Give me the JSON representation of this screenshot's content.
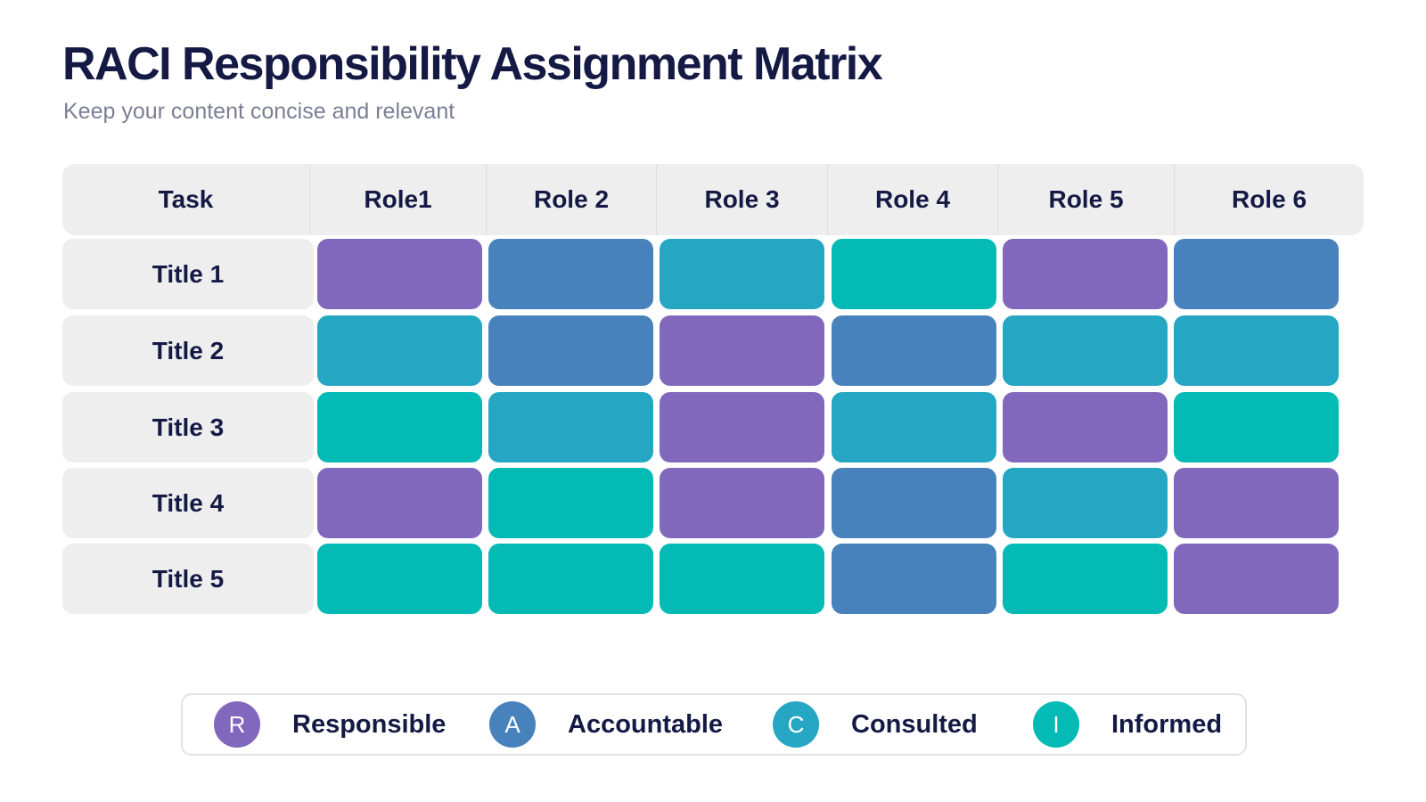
{
  "title": "RACI Responsibility Assignment Matrix",
  "subtitle": "Keep your content concise and relevant",
  "colors": {
    "R": "#8268bd",
    "A": "#4882bc",
    "C": "#25a7c4",
    "I": "#04bab5",
    "header_bg": "#eeeeee",
    "text": "#151a45"
  },
  "matrix": {
    "task_header": "Task",
    "roles": [
      "Role1",
      "Role 2",
      "Role 3",
      "Role 4",
      "Role 5",
      "Role 6"
    ],
    "rows": [
      {
        "title": "Title 1",
        "cells": [
          "R",
          "A",
          "C",
          "I",
          "R",
          "A"
        ]
      },
      {
        "title": "Title 2",
        "cells": [
          "C",
          "A",
          "R",
          "A",
          "C",
          "C"
        ]
      },
      {
        "title": "Title 3",
        "cells": [
          "I",
          "C",
          "R",
          "C",
          "R",
          "I"
        ]
      },
      {
        "title": "Title 4",
        "cells": [
          "R",
          "I",
          "R",
          "A",
          "C",
          "R"
        ]
      },
      {
        "title": "Title 5",
        "cells": [
          "I",
          "I",
          "I",
          "A",
          "I",
          "R"
        ]
      }
    ]
  },
  "legend": [
    {
      "key": "R",
      "letter": "R",
      "label": "Responsible"
    },
    {
      "key": "A",
      "letter": "A",
      "label": "Accountable"
    },
    {
      "key": "C",
      "letter": "C",
      "label": "Consulted"
    },
    {
      "key": "I",
      "letter": "I",
      "label": "Informed"
    }
  ]
}
